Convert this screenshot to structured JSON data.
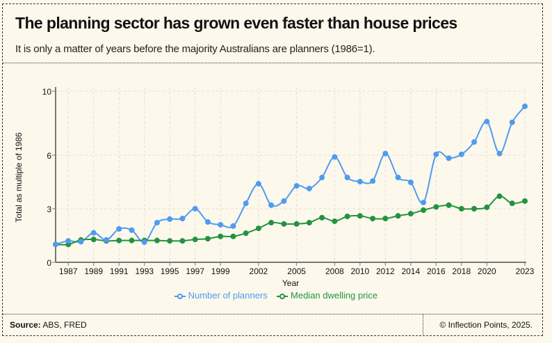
{
  "header": {
    "title": "The planning sector has grown even faster than house prices",
    "subtitle": "It is only a matter of years before the majority Australians are planners (1986=1)."
  },
  "footer": {
    "source_label": "Source:",
    "source": "ABS, FRED",
    "copyright": "© Inflection Points, 2025."
  },
  "chart_data": {
    "type": "line",
    "title": "",
    "xlabel": "Year",
    "ylabel": "Total as multiple of 1986",
    "x": [
      1986,
      1987,
      1988,
      1989,
      1990,
      1991,
      1992,
      1993,
      1994,
      1995,
      1996,
      1997,
      1998,
      1999,
      2000,
      2001,
      2002,
      2003,
      2004,
      2005,
      2006,
      2007,
      2008,
      2009,
      2010,
      2011,
      2012,
      2013,
      2014,
      2015,
      2016,
      2017,
      2018,
      2019,
      2020,
      2021,
      2022,
      2023
    ],
    "x_ticks": [
      1987,
      1989,
      1991,
      1993,
      1995,
      1997,
      1999,
      2002,
      2005,
      2008,
      2010,
      2012,
      2014,
      2016,
      2018,
      2020,
      2023
    ],
    "y_ticks": [
      0,
      3,
      6,
      10
    ],
    "ylim": [
      0,
      10
    ],
    "grid": true,
    "legend_position": "bottom",
    "series": [
      {
        "name": "Number of planners",
        "color": "#4f9bf0",
        "values": [
          1.0,
          1.2,
          1.15,
          1.65,
          1.25,
          1.87,
          1.8,
          1.13,
          2.22,
          2.42,
          2.45,
          3.0,
          2.26,
          2.1,
          2.03,
          3.3,
          4.4,
          3.2,
          3.43,
          4.28,
          4.13,
          4.75,
          5.9,
          4.75,
          4.52,
          4.55,
          6.1,
          4.75,
          4.48,
          3.35,
          6.05,
          5.83,
          6.05,
          6.82,
          8.1,
          6.1,
          8.05,
          9.05
        ]
      },
      {
        "name": "Median dwelling price",
        "color": "#22933f",
        "values": [
          1.0,
          1.0,
          1.25,
          1.28,
          1.2,
          1.22,
          1.22,
          1.22,
          1.22,
          1.2,
          1.2,
          1.28,
          1.32,
          1.45,
          1.45,
          1.63,
          1.9,
          2.22,
          2.15,
          2.15,
          2.22,
          2.5,
          2.3,
          2.57,
          2.6,
          2.45,
          2.45,
          2.6,
          2.72,
          2.92,
          3.1,
          3.2,
          3.0,
          3.0,
          3.08,
          3.7,
          3.3,
          3.43
        ]
      }
    ]
  }
}
